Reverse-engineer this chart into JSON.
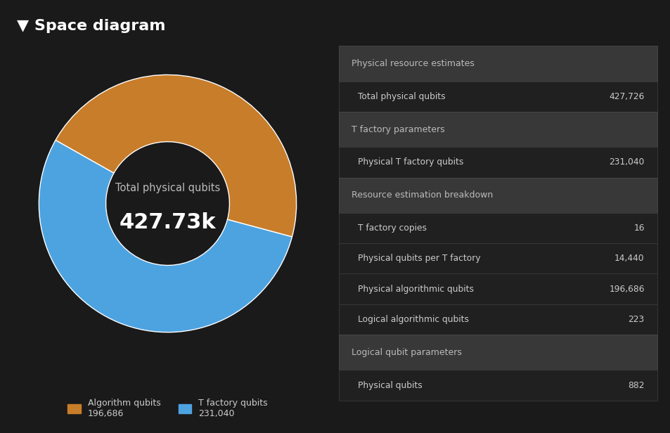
{
  "title": "▼ Space diagram",
  "bg_color": "#1a1a1a",
  "title_color": "#ffffff",
  "donut_values": [
    196686,
    231040
  ],
  "donut_colors": [
    "#c87d2a",
    "#4da3e0"
  ],
  "donut_center_label": "Total physical qubits",
  "donut_center_value": "427.73k",
  "donut_startangle": -15,
  "donut_width": 0.52,
  "legend_labels": [
    "Algorithm qubits\n196,686",
    "T factory qubits\n231,040"
  ],
  "table_header_bg": "#383838",
  "table_row_bg": "#202020",
  "table_text_color": "#cccccc",
  "table_header_text_color": "#bbbbbb",
  "table_sections": [
    {
      "header": "Physical resource estimates",
      "rows": [
        [
          "Total physical qubits",
          "427,726"
        ]
      ]
    },
    {
      "header": "T factory parameters",
      "rows": [
        [
          "Physical T factory qubits",
          "231,040"
        ]
      ]
    },
    {
      "header": "Resource estimation breakdown",
      "rows": [
        [
          "T factory copies",
          "16"
        ],
        [
          "Physical qubits per T factory",
          "14,440"
        ],
        [
          "Physical algorithmic qubits",
          "196,686"
        ],
        [
          "Logical algorithmic qubits",
          "223"
        ]
      ]
    },
    {
      "header": "Logical qubit parameters",
      "rows": [
        [
          "Physical qubits",
          "882"
        ]
      ]
    }
  ]
}
